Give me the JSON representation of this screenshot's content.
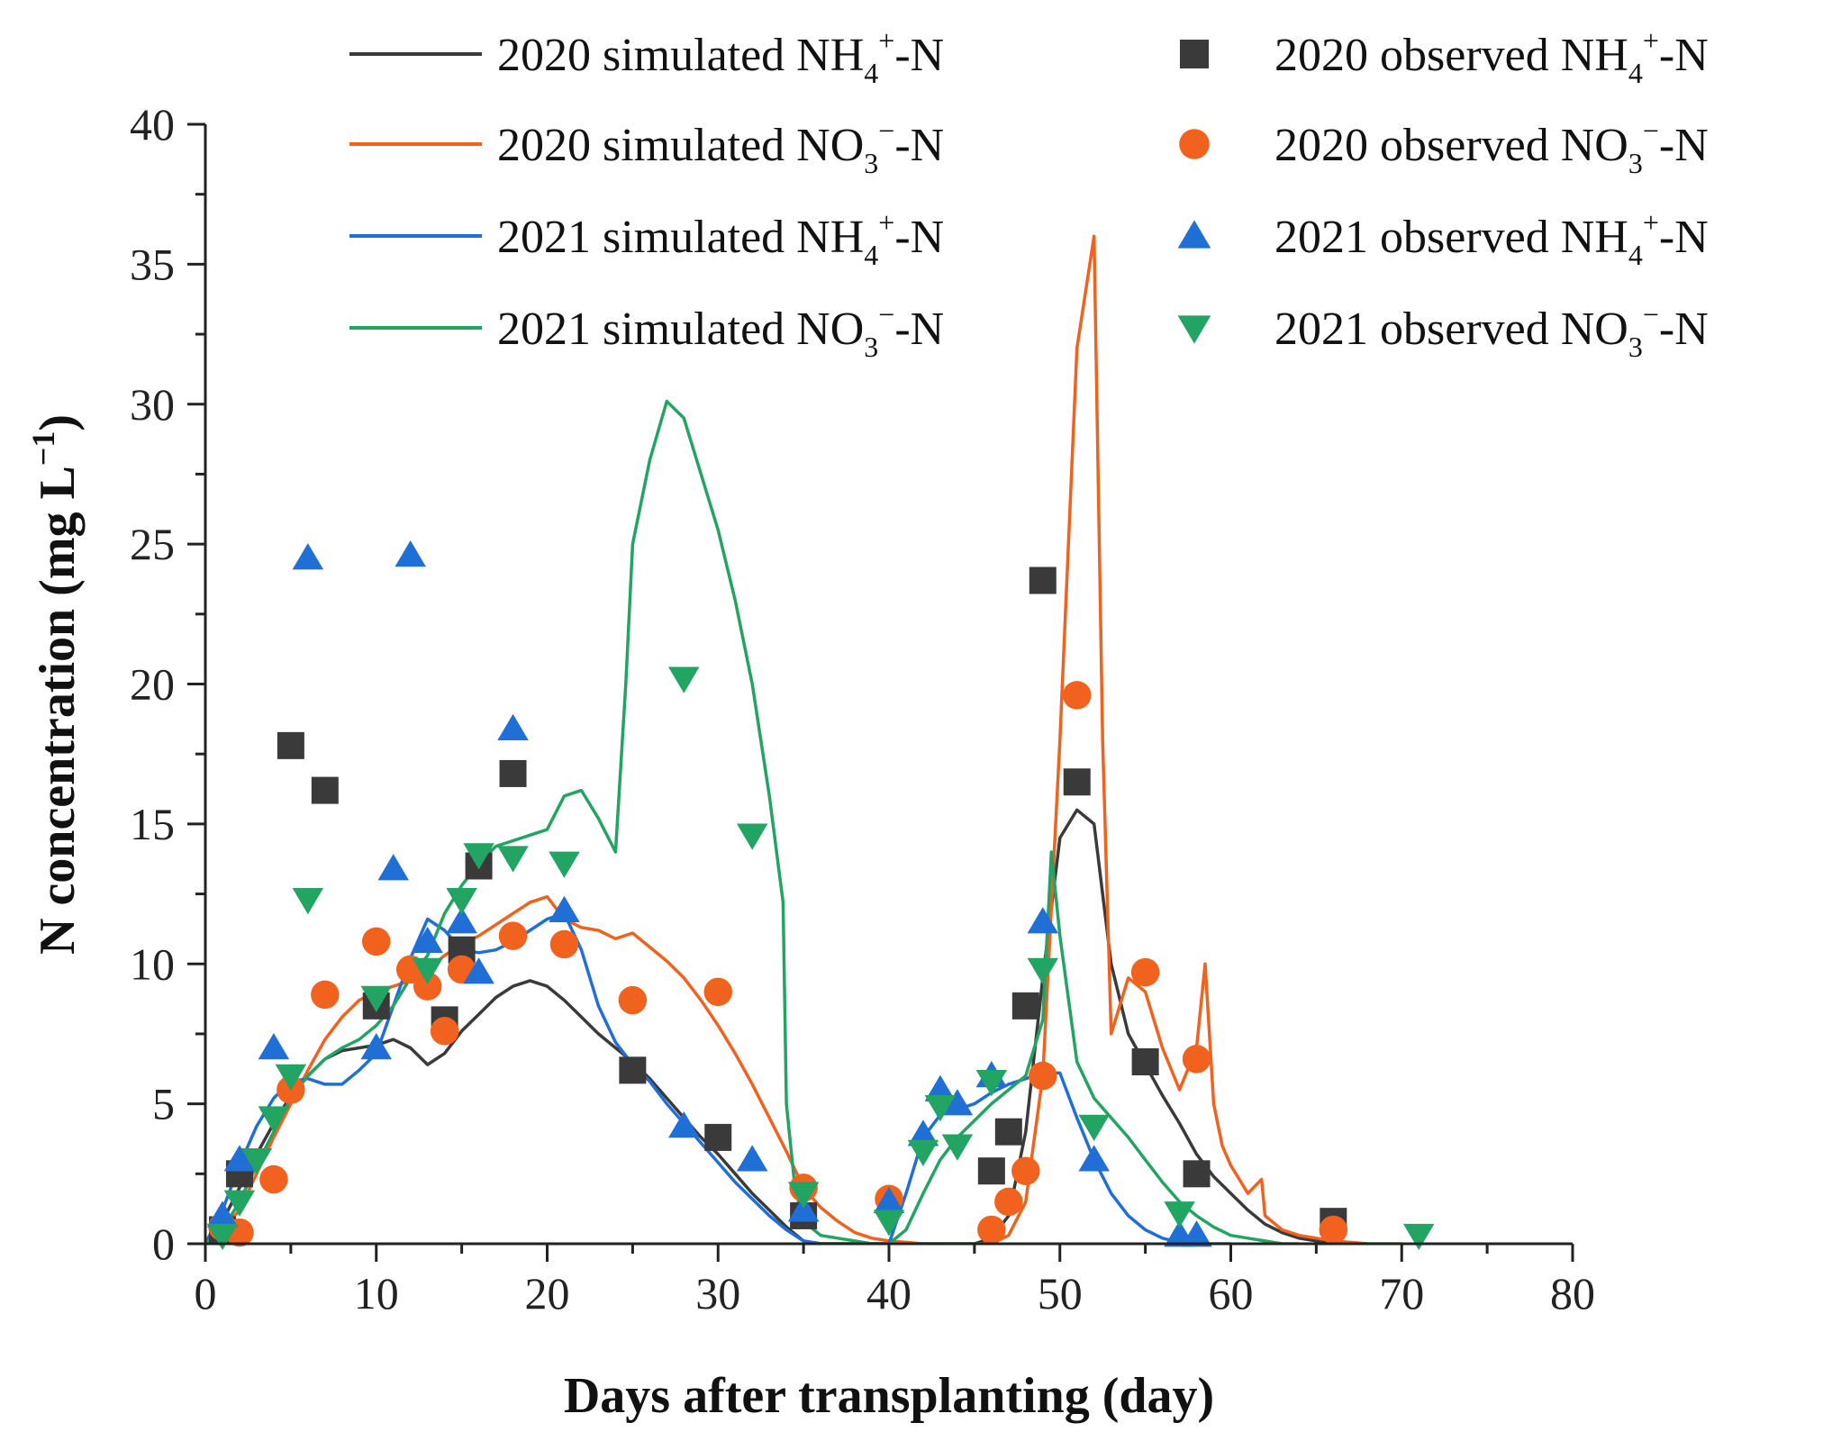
{
  "chart_data": {
    "type": "line",
    "title": "",
    "xlabel": "Days after transplanting (day)",
    "ylabel_main": "N concentration (mg L",
    "ylabel_sup": "−1",
    "ylabel_end": ")",
    "xlim": [
      0,
      80
    ],
    "ylim": [
      0,
      40
    ],
    "x_ticks": [
      "0",
      "10",
      "20",
      "30",
      "40",
      "50",
      "60",
      "70",
      "80"
    ],
    "y_ticks": [
      "0",
      "5",
      "10",
      "15",
      "20",
      "25",
      "30",
      "35",
      "40"
    ],
    "legend_placement": "top",
    "colors": {
      "black": "#3a3a3a",
      "orange": "#f0621e",
      "blue": "#1f6fd6",
      "green": "#22a463"
    },
    "series": [
      {
        "id": "sim2020nh4",
        "kind": "line",
        "color": "black",
        "legend": {
          "pre": "2020 simulated NH",
          "sub": "4",
          "sup": "+",
          "post": "-N"
        },
        "x": [
          0,
          1,
          2,
          3,
          4,
          5,
          6,
          7,
          8,
          9,
          10,
          11,
          12,
          13,
          14,
          15,
          16,
          17,
          18,
          19,
          20,
          21,
          22,
          23,
          24,
          25,
          26,
          27,
          28,
          29,
          30,
          31,
          32,
          33,
          34,
          35,
          36,
          37,
          38,
          39,
          40,
          41,
          42,
          43,
          44,
          45,
          46,
          47,
          48,
          49,
          50,
          51,
          52,
          53,
          54,
          55,
          56,
          57,
          58,
          59,
          60,
          61,
          62,
          63,
          64,
          65,
          66,
          67,
          68
        ],
        "y": [
          0,
          0.8,
          2.0,
          3.2,
          4.3,
          5.3,
          6.0,
          6.6,
          6.9,
          7.0,
          7.1,
          7.3,
          7.0,
          6.4,
          6.8,
          7.6,
          8.2,
          8.8,
          9.2,
          9.4,
          9.2,
          8.7,
          8.1,
          7.5,
          7.0,
          6.5,
          5.9,
          5.2,
          4.5,
          3.8,
          3.2,
          2.5,
          1.8,
          1.2,
          0.6,
          0.1,
          0,
          0,
          0,
          0,
          0,
          0,
          0,
          0,
          0,
          0,
          0.2,
          1.0,
          4.0,
          9.5,
          14.5,
          15.5,
          15.0,
          10.0,
          7.5,
          6.4,
          5.3,
          4.3,
          3.2,
          2.4,
          1.8,
          1.2,
          0.7,
          0.4,
          0.2,
          0.1,
          0,
          0,
          0
        ]
      },
      {
        "id": "sim2020no3",
        "kind": "line",
        "color": "orange",
        "legend": {
          "pre": "2020 simulated NO",
          "sub": "3",
          "sup": "−",
          "post": "-N"
        },
        "x": [
          0,
          1,
          2,
          3,
          4,
          5,
          6,
          7,
          8,
          9,
          10,
          11,
          12,
          13,
          14,
          15,
          16,
          17,
          18,
          19,
          20,
          21,
          22,
          23,
          24,
          25,
          26,
          27,
          28,
          29,
          30,
          31,
          32,
          33,
          34,
          35,
          36,
          37,
          38,
          39,
          40,
          41,
          42,
          43,
          44,
          45,
          46,
          47,
          48,
          49,
          50,
          51,
          52,
          52.5,
          53,
          54,
          55,
          56,
          57,
          58,
          58.5,
          59,
          59.5,
          60,
          61,
          61.8,
          62,
          63,
          64,
          65,
          66,
          67,
          68,
          69,
          70
        ],
        "y": [
          0,
          0.5,
          1.2,
          2.5,
          3.8,
          5.0,
          6.2,
          7.3,
          8.1,
          8.7,
          9.0,
          9.2,
          9.4,
          9.8,
          10.3,
          10.7,
          11.0,
          11.4,
          11.8,
          12.2,
          12.4,
          11.6,
          11.3,
          11.2,
          10.9,
          11.1,
          10.6,
          10.1,
          9.5,
          8.7,
          7.8,
          6.8,
          5.7,
          4.5,
          3.3,
          2.0,
          1.3,
          0.8,
          0.4,
          0.2,
          0.1,
          0.05,
          0,
          0,
          0,
          0,
          0,
          0.3,
          1.5,
          6.0,
          18.0,
          32.0,
          36.0,
          18.0,
          7.5,
          9.5,
          9.0,
          7.0,
          5.5,
          7.0,
          10.0,
          5.0,
          3.5,
          2.8,
          1.8,
          2.3,
          1.0,
          0.5,
          0.3,
          0.2,
          0.1,
          0.05,
          0,
          0,
          0
        ]
      },
      {
        "id": "sim2021nh4",
        "kind": "line",
        "color": "blue",
        "legend": {
          "pre": "2021 simulated NH",
          "sub": "4",
          "sup": "+",
          "post": "-N"
        },
        "x": [
          0,
          1,
          2,
          3,
          4,
          5,
          6,
          7,
          8,
          9,
          10,
          11,
          12,
          13,
          14,
          15,
          16,
          17,
          18,
          19,
          20,
          21,
          22,
          23,
          24,
          25,
          26,
          27,
          28,
          29,
          30,
          31,
          32,
          33,
          34,
          35,
          36,
          37,
          38,
          39,
          40,
          41,
          42,
          43,
          44,
          45,
          46,
          47,
          48,
          49,
          50,
          51,
          52,
          53,
          54,
          55,
          56,
          57,
          58,
          59,
          60
        ],
        "y": [
          0,
          1.2,
          2.8,
          4.2,
          5.2,
          5.8,
          5.9,
          5.7,
          5.7,
          6.2,
          6.8,
          8.5,
          10.2,
          11.6,
          11.2,
          10.5,
          10.4,
          10.5,
          10.8,
          11.2,
          11.6,
          11.8,
          10.5,
          8.5,
          7.2,
          6.4,
          5.8,
          5.0,
          4.3,
          3.6,
          2.9,
          2.2,
          1.6,
          1.0,
          0.5,
          0.1,
          0,
          0,
          0,
          0,
          0,
          1.8,
          3.8,
          4.6,
          4.8,
          5.0,
          5.4,
          5.7,
          5.9,
          6.1,
          6.1,
          4.5,
          3.0,
          1.8,
          1.0,
          0.5,
          0.2,
          0.05,
          0,
          0,
          0
        ]
      },
      {
        "id": "sim2021no3",
        "kind": "line",
        "color": "green",
        "legend": {
          "pre": "2021 simulated NO",
          "sub": "3",
          "sup": "−",
          "post": "-N"
        },
        "x": [
          0,
          1,
          2,
          3,
          4,
          5,
          6,
          7,
          8,
          9,
          10,
          11,
          12,
          13,
          14,
          15,
          16,
          17,
          18,
          19,
          20,
          21,
          22,
          23,
          24,
          24.6,
          25,
          26,
          27,
          28,
          29,
          30,
          31,
          32,
          33,
          33.8,
          34,
          34.5,
          35,
          36,
          37,
          38,
          39,
          40,
          41,
          42,
          43,
          44,
          45,
          46,
          47,
          48,
          49,
          49.5,
          50,
          51,
          52,
          53,
          54,
          55,
          56,
          57,
          58,
          59,
          60,
          61,
          62,
          63,
          64
        ],
        "y": [
          0,
          0.5,
          1.5,
          2.8,
          4.0,
          5.2,
          6.0,
          6.6,
          7.0,
          7.3,
          7.8,
          8.5,
          9.5,
          10.3,
          11.8,
          12.8,
          13.6,
          14.2,
          14.4,
          14.6,
          14.8,
          16.0,
          16.2,
          15.2,
          14.0,
          20.0,
          25.0,
          28.0,
          30.1,
          29.5,
          27.5,
          25.5,
          23.0,
          20.0,
          16.0,
          12.2,
          5.0,
          2.0,
          0.8,
          0.3,
          0.2,
          0.1,
          0,
          0,
          0.5,
          1.8,
          3.0,
          3.8,
          4.4,
          5.0,
          5.5,
          6.0,
          8.0,
          14.0,
          11.0,
          6.5,
          5.2,
          4.5,
          3.8,
          3.0,
          2.2,
          1.5,
          1.0,
          0.6,
          0.3,
          0.2,
          0.1,
          0,
          0
        ]
      },
      {
        "id": "obs2020nh4",
        "kind": "marker",
        "marker": "square",
        "color": "black",
        "legend": {
          "pre": "2020 observed NH",
          "sub": "4",
          "sup": "+",
          "post": "-N"
        },
        "x": [
          1,
          2,
          5,
          7,
          10,
          14,
          15,
          16,
          18,
          25,
          30,
          35,
          46,
          47,
          48,
          49,
          51,
          55,
          58,
          66
        ],
        "y": [
          0.5,
          2.5,
          17.8,
          16.2,
          8.5,
          8.0,
          10.5,
          13.5,
          16.8,
          6.2,
          3.8,
          1.0,
          2.6,
          4.0,
          8.5,
          23.7,
          16.5,
          6.5,
          2.5,
          0.8
        ]
      },
      {
        "id": "obs2020no3",
        "kind": "marker",
        "marker": "circle",
        "color": "orange",
        "legend": {
          "pre": "2020 observed NO",
          "sub": "3",
          "sup": "−",
          "post": "-N"
        },
        "x": [
          1,
          2,
          4,
          5,
          7,
          10,
          12,
          13,
          14,
          15,
          18,
          21,
          25,
          30,
          35,
          40,
          46,
          47,
          48,
          49,
          51,
          55,
          58,
          66
        ],
        "y": [
          0.6,
          0.4,
          2.3,
          5.5,
          8.9,
          10.8,
          9.8,
          9.2,
          7.6,
          9.8,
          11.0,
          10.7,
          8.7,
          9.0,
          2.0,
          1.6,
          0.5,
          1.5,
          2.6,
          6.0,
          19.6,
          9.7,
          6.6,
          0.5
        ]
      },
      {
        "id": "obs2021nh4",
        "kind": "marker",
        "marker": "triangle-up",
        "color": "blue",
        "legend": {
          "pre": "2021 observed NH",
          "sub": "4",
          "sup": "+",
          "post": "-N"
        },
        "x": [
          1,
          2,
          4,
          6,
          10,
          11,
          12,
          13,
          15,
          16,
          18,
          21,
          28,
          32,
          35,
          40,
          42,
          43,
          44,
          46,
          49,
          52,
          57,
          58
        ],
        "y": [
          1.0,
          3.0,
          7.0,
          24.5,
          7.0,
          13.4,
          24.6,
          10.8,
          11.5,
          9.7,
          18.4,
          11.9,
          4.2,
          3.0,
          1.2,
          1.5,
          3.9,
          5.5,
          5.0,
          6.0,
          11.5,
          3.0,
          0.3,
          0.3
        ]
      },
      {
        "id": "obs2021no3",
        "kind": "marker",
        "marker": "triangle-down",
        "color": "green",
        "legend": {
          "pre": "2021 observed NO",
          "sub": "3",
          "sup": "−",
          "post": "-N"
        },
        "x": [
          1,
          2,
          3,
          4,
          5,
          6,
          10,
          13,
          15,
          16,
          18,
          21,
          28,
          32,
          35,
          40,
          42,
          43,
          44,
          46,
          49,
          52,
          57,
          71
        ],
        "y": [
          0.3,
          1.5,
          3.0,
          4.5,
          6.0,
          12.3,
          8.8,
          9.8,
          12.3,
          13.9,
          13.8,
          13.6,
          20.2,
          14.6,
          1.8,
          0.8,
          3.3,
          4.9,
          3.5,
          5.8,
          9.8,
          4.2,
          1.1,
          0.3
        ]
      }
    ]
  }
}
